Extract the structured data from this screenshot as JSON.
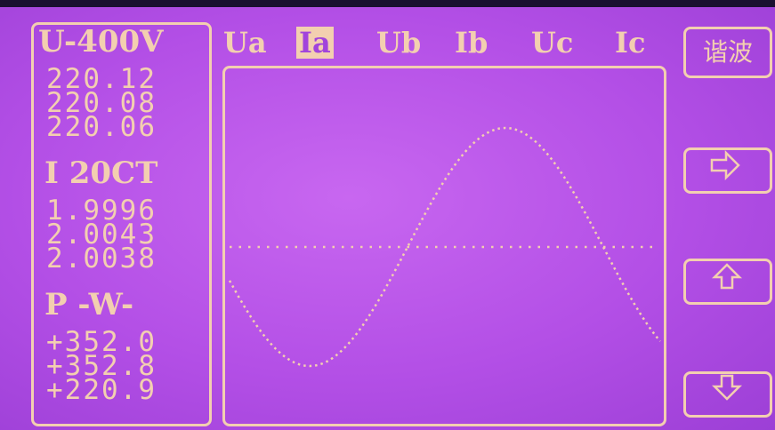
{
  "left_panel": {
    "voltage": {
      "label": "U-400V",
      "readings": [
        "220.12",
        "220.08",
        "220.06"
      ]
    },
    "current": {
      "label": "I 20CT",
      "readings": [
        "1.9996",
        "2.0043",
        "2.0038"
      ]
    },
    "power": {
      "label": "P -W-",
      "readings": [
        "+352.0",
        "+352.8",
        "+220.9"
      ]
    }
  },
  "tabs": [
    "Ua",
    "Ia",
    "Ub",
    "Ib",
    "Uc",
    "Ic"
  ],
  "selected_tab": 1,
  "harmonic_button": "谐波"
}
